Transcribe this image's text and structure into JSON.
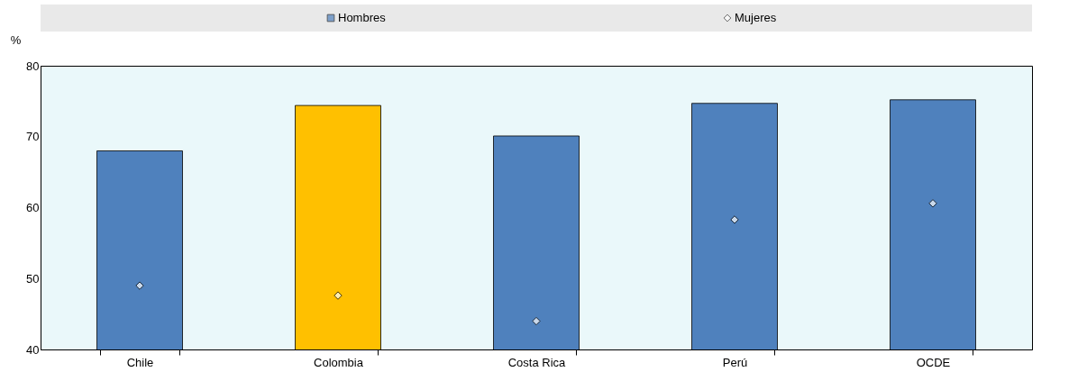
{
  "chart_data": {
    "type": "bar",
    "ylabel": "%",
    "categories": [
      "Chile",
      "Colombia",
      "Costa Rica",
      "Perú",
      "OCDE"
    ],
    "series": [
      {
        "name": "Hombres",
        "color": "#4f81bd",
        "colors": [
          "#4f81bd",
          "#ffc000",
          "#4f81bd",
          "#4f81bd",
          "#4f81bd"
        ],
        "values": [
          68.0,
          74.4,
          70.1,
          74.7,
          75.2
        ]
      },
      {
        "name": "Mujeres",
        "type": "scatter",
        "marker": "diamond",
        "color": "#ffffff",
        "x": [
          "Chile",
          "Colombia",
          "Costa Rica",
          "Perú",
          "OCDE"
        ],
        "values": [
          49.0,
          47.6,
          44.0,
          58.3,
          60.6
        ]
      }
    ],
    "ylim": [
      40,
      80
    ],
    "yticks": [
      40,
      50,
      60,
      70,
      80
    ],
    "grid": false,
    "legend": "top"
  }
}
